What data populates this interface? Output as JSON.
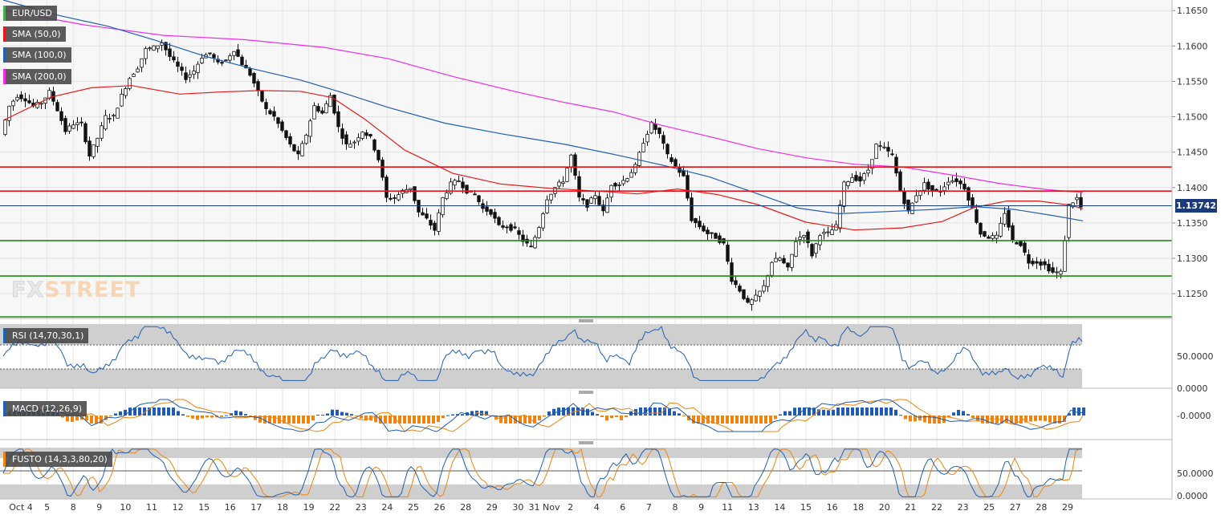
{
  "labels": {
    "symbol": "EUR/USD",
    "sma50": "SMA (50,0)",
    "sma100": "SMA (100,0)",
    "sma200": "SMA (200,0)",
    "rsi": "RSI (14,70,30,1)",
    "macd": "MACD (12,26,9)",
    "fusto": "FUSTO (14,3,3,80,20)"
  },
  "logo": {
    "fx": "FX",
    "street": "STREET"
  },
  "colors": {
    "sma50": "#e8191c",
    "sma100": "#1f5fb4",
    "sma200": "#ee2ee8",
    "resistance": "#e4141a",
    "support": "#1e8a16",
    "current_price_line": "#1b3a7a",
    "macd_pos": "#1e5cb3",
    "macd_neg": "#f0840e"
  },
  "chart_data": [
    {
      "type": "candlestick",
      "name": "price",
      "symbol": "EUR/USD",
      "y_ticks": [
        "1.1650",
        "1.1600",
        "1.1550",
        "1.1500",
        "1.1450",
        "1.1400",
        "1.1350",
        "1.1300",
        "1.1250"
      ],
      "ylim": [
        1.1215,
        1.1665
      ],
      "x_tick_labels": [
        "Oct 4",
        "5",
        "8",
        "9",
        "10",
        "11",
        "12",
        "15",
        "16",
        "17",
        "18",
        "19",
        "22",
        "23",
        "24",
        "25",
        "26",
        "28",
        "29",
        "30",
        "31 Nov",
        "2",
        "4",
        "6",
        "7",
        "8",
        "9",
        "11",
        "13",
        "14",
        "15",
        "16",
        "18",
        "20",
        "21",
        "22",
        "23",
        "25",
        "27",
        "28",
        "29"
      ],
      "current_price": "1.13742",
      "horizontal_levels": {
        "resistance": [
          1.1429,
          1.1395
        ],
        "support": [
          1.1325,
          1.1275,
          1.1215
        ]
      },
      "close_path": [
        [
          0,
          1.1475
        ],
        [
          10,
          1.1515
        ],
        [
          20,
          1.153
        ],
        [
          30,
          1.1525
        ],
        [
          40,
          1.1515
        ],
        [
          50,
          1.152
        ],
        [
          60,
          1.1535
        ],
        [
          70,
          1.151
        ],
        [
          80,
          1.148
        ],
        [
          90,
          1.149
        ],
        [
          100,
          1.149
        ],
        [
          110,
          1.1445
        ],
        [
          120,
          1.147
        ],
        [
          130,
          1.15
        ],
        [
          140,
          1.15
        ],
        [
          150,
          1.153
        ],
        [
          160,
          1.1555
        ],
        [
          170,
          1.157
        ],
        [
          180,
          1.1595
        ],
        [
          190,
          1.1598
        ],
        [
          200,
          1.1605
        ],
        [
          210,
          1.1585
        ],
        [
          220,
          1.157
        ],
        [
          230,
          1.1555
        ],
        [
          240,
          1.1565
        ],
        [
          250,
          1.1585
        ],
        [
          260,
          1.159
        ],
        [
          270,
          1.1575
        ],
        [
          280,
          1.158
        ],
        [
          290,
          1.1595
        ],
        [
          300,
          1.1575
        ],
        [
          310,
          1.156
        ],
        [
          320,
          1.1535
        ],
        [
          330,
          1.151
        ],
        [
          340,
          1.15
        ],
        [
          350,
          1.148
        ],
        [
          360,
          1.146
        ],
        [
          370,
          1.1445
        ],
        [
          380,
          1.1475
        ],
        [
          390,
          1.1515
        ],
        [
          400,
          1.1505
        ],
        [
          410,
          1.153
        ],
        [
          420,
          1.1485
        ],
        [
          430,
          1.146
        ],
        [
          440,
          1.1465
        ],
        [
          450,
          1.148
        ],
        [
          460,
          1.147
        ],
        [
          470,
          1.144
        ],
        [
          480,
          1.1385
        ],
        [
          490,
          1.1385
        ],
        [
          500,
          1.1395
        ],
        [
          510,
          1.14
        ],
        [
          520,
          1.1365
        ],
        [
          530,
          1.1355
        ],
        [
          540,
          1.134
        ],
        [
          550,
          1.1385
        ],
        [
          560,
          1.1405
        ],
        [
          570,
          1.141
        ],
        [
          580,
          1.1395
        ],
        [
          590,
          1.139
        ],
        [
          600,
          1.137
        ],
        [
          610,
          1.1365
        ],
        [
          620,
          1.1345
        ],
        [
          630,
          1.1345
        ],
        [
          640,
          1.134
        ],
        [
          650,
          1.1325
        ],
        [
          660,
          1.1315
        ],
        [
          670,
          1.1345
        ],
        [
          680,
          1.1385
        ],
        [
          690,
          1.14
        ],
        [
          700,
          1.141
        ],
        [
          710,
          1.1445
        ],
        [
          720,
          1.1385
        ],
        [
          730,
          1.1375
        ],
        [
          740,
          1.139
        ],
        [
          750,
          1.1365
        ],
        [
          760,
          1.1405
        ],
        [
          770,
          1.1405
        ],
        [
          780,
          1.1415
        ],
        [
          790,
          1.143
        ],
        [
          800,
          1.1465
        ],
        [
          810,
          1.149
        ],
        [
          820,
          1.1475
        ],
        [
          830,
          1.1445
        ],
        [
          840,
          1.143
        ],
        [
          850,
          1.1415
        ],
        [
          860,
          1.1355
        ],
        [
          870,
          1.1345
        ],
        [
          880,
          1.1335
        ],
        [
          890,
          1.133
        ],
        [
          900,
          1.132
        ],
        [
          910,
          1.127
        ],
        [
          920,
          1.1255
        ],
        [
          930,
          1.1235
        ],
        [
          940,
          1.1245
        ],
        [
          950,
          1.126
        ],
        [
          960,
          1.1295
        ],
        [
          970,
          1.13
        ],
        [
          980,
          1.1285
        ],
        [
          990,
          1.1325
        ],
        [
          1000,
          1.1335
        ],
        [
          1010,
          1.1305
        ],
        [
          1020,
          1.1335
        ],
        [
          1030,
          1.1335
        ],
        [
          1040,
          1.1345
        ],
        [
          1050,
          1.1405
        ],
        [
          1060,
          1.1415
        ],
        [
          1070,
          1.141
        ],
        [
          1080,
          1.1425
        ],
        [
          1090,
          1.146
        ],
        [
          1100,
          1.1455
        ],
        [
          1110,
          1.1445
        ],
        [
          1120,
          1.1395
        ],
        [
          1130,
          1.1365
        ],
        [
          1140,
          1.139
        ],
        [
          1150,
          1.1405
        ],
        [
          1160,
          1.1395
        ],
        [
          1170,
          1.1395
        ],
        [
          1180,
          1.141
        ],
        [
          1190,
          1.141
        ],
        [
          1200,
          1.14
        ],
        [
          1210,
          1.137
        ],
        [
          1220,
          1.1335
        ],
        [
          1230,
          1.133
        ],
        [
          1240,
          1.133
        ],
        [
          1250,
          1.1365
        ],
        [
          1260,
          1.1325
        ],
        [
          1270,
          1.132
        ],
        [
          1280,
          1.1295
        ],
        [
          1290,
          1.1295
        ],
        [
          1300,
          1.129
        ],
        [
          1310,
          1.128
        ],
        [
          1320,
          1.128
        ],
        [
          1330,
          1.1375
        ],
        [
          1340,
          1.1385
        ],
        [
          1345,
          1.1372
        ]
      ],
      "sma50_path": [
        [
          0,
          1.1495
        ],
        [
          60,
          1.1528
        ],
        [
          110,
          1.1541
        ],
        [
          160,
          1.1544
        ],
        [
          220,
          1.1532
        ],
        [
          270,
          1.1535
        ],
        [
          320,
          1.1537
        ],
        [
          370,
          1.1536
        ],
        [
          410,
          1.1527
        ],
        [
          450,
          1.1497
        ],
        [
          500,
          1.1453
        ],
        [
          560,
          1.142
        ],
        [
          620,
          1.1405
        ],
        [
          680,
          1.1399
        ],
        [
          740,
          1.1395
        ],
        [
          790,
          1.1391
        ],
        [
          840,
          1.1398
        ],
        [
          890,
          1.139
        ],
        [
          940,
          1.1376
        ],
        [
          1000,
          1.1351
        ],
        [
          1060,
          1.134
        ],
        [
          1120,
          1.1343
        ],
        [
          1170,
          1.1352
        ],
        [
          1210,
          1.1372
        ],
        [
          1250,
          1.1381
        ],
        [
          1290,
          1.1381
        ],
        [
          1330,
          1.1375
        ],
        [
          1345,
          1.137
        ]
      ],
      "sma100_path": [
        [
          0,
          1.1665
        ],
        [
          70,
          1.1643
        ],
        [
          130,
          1.1628
        ],
        [
          190,
          1.1608
        ],
        [
          250,
          1.1586
        ],
        [
          310,
          1.1568
        ],
        [
          370,
          1.1552
        ],
        [
          420,
          1.1535
        ],
        [
          480,
          1.1513
        ],
        [
          550,
          1.1491
        ],
        [
          620,
          1.1476
        ],
        [
          700,
          1.1461
        ],
        [
          760,
          1.1447
        ],
        [
          820,
          1.1432
        ],
        [
          880,
          1.1415
        ],
        [
          940,
          1.1391
        ],
        [
          990,
          1.1371
        ],
        [
          1040,
          1.1363
        ],
        [
          1100,
          1.1366
        ],
        [
          1160,
          1.1369
        ],
        [
          1210,
          1.1373
        ],
        [
          1260,
          1.1369
        ],
        [
          1310,
          1.136
        ],
        [
          1345,
          1.1353
        ]
      ],
      "sma200_path": [
        [
          0,
          1.1651
        ],
        [
          100,
          1.163
        ],
        [
          200,
          1.1615
        ],
        [
          300,
          1.1609
        ],
        [
          400,
          1.1598
        ],
        [
          480,
          1.1582
        ],
        [
          560,
          1.1557
        ],
        [
          640,
          1.1535
        ],
        [
          700,
          1.152
        ],
        [
          760,
          1.1507
        ],
        [
          820,
          1.1488
        ],
        [
          880,
          1.1472
        ],
        [
          940,
          1.1455
        ],
        [
          1000,
          1.1442
        ],
        [
          1060,
          1.1433
        ],
        [
          1120,
          1.1429
        ],
        [
          1180,
          1.1418
        ],
        [
          1240,
          1.1406
        ],
        [
          1300,
          1.1397
        ],
        [
          1345,
          1.1393
        ]
      ]
    },
    {
      "type": "line",
      "name": "RSI",
      "label": "RSI (14,70,30,1)",
      "y_ticks": [
        "50.0000",
        "0.0000"
      ],
      "ylim": [
        0,
        100
      ]
    },
    {
      "type": "bar",
      "name": "MACD",
      "label": "MACD (12,26,9)",
      "y_ticks": [
        "-0.0000"
      ]
    },
    {
      "type": "line",
      "name": "FUSTO",
      "label": "FUSTO (14,3,3,80,20)",
      "y_ticks": [
        "50.0000",
        "0.0000"
      ],
      "ylim": [
        0,
        100
      ]
    }
  ]
}
